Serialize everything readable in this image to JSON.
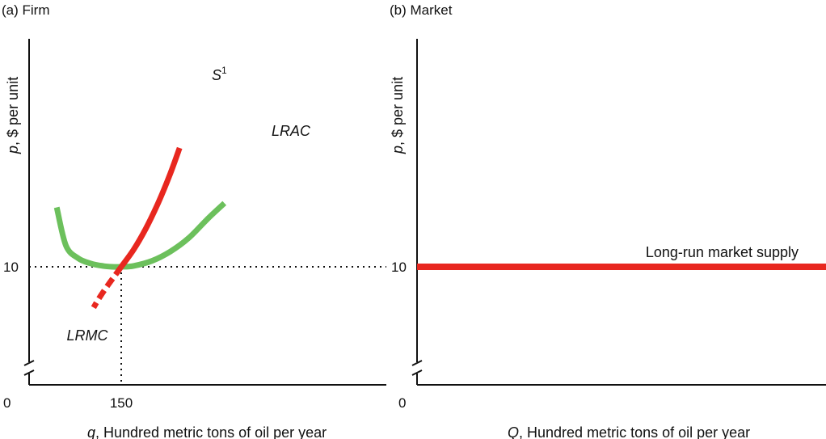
{
  "chart_data": [
    {
      "panel": "firm",
      "type": "line",
      "title": "(a) Firm",
      "ylabel_var": "p",
      "ylabel_rest": ", $ per unit",
      "xlabel_var": "q",
      "xlabel_rest": ", Hundred metric tons of oil per year",
      "origin_label": "0",
      "x_ticks": [
        {
          "value": 150,
          "label": "150"
        }
      ],
      "y_ticks": [
        {
          "value": 10,
          "label": "10"
        }
      ],
      "axis_break_on_y": true,
      "dotted_reference": {
        "x": 150,
        "y": 10
      },
      "series": [
        {
          "name": "LRAC",
          "color": "#6cc05c",
          "points": [
            [
              45,
              17
            ],
            [
              60,
              12.5
            ],
            [
              80,
              11
            ],
            [
              100,
              10.4
            ],
            [
              120,
              10.1
            ],
            [
              135,
              10.0
            ],
            [
              150,
              10.0
            ],
            [
              170,
              10.1
            ],
            [
              200,
              10.7
            ],
            [
              230,
              11.8
            ],
            [
              260,
              13.4
            ],
            [
              290,
              15.6
            ],
            [
              318,
              17.5
            ]
          ]
        },
        {
          "name": "S",
          "name_superscript": "1",
          "color": "#e8271f",
          "points": [
            [
              150,
              10
            ],
            [
              170,
              12
            ],
            [
              190,
              14.5
            ],
            [
              210,
              17.5
            ],
            [
              230,
              21
            ],
            [
              245,
              24
            ]
          ]
        },
        {
          "name": "LRMC",
          "color": "#e8271f",
          "dashed": true,
          "points": [
            [
              150,
              10
            ],
            [
              138,
              8.8
            ],
            [
              126,
              7.6
            ],
            [
              114,
              6.3
            ],
            [
              105,
              5.2
            ]
          ]
        }
      ]
    },
    {
      "panel": "market",
      "type": "line",
      "title": "(b) Market",
      "ylabel_var": "p",
      "ylabel_rest": ", $ per unit",
      "xlabel_var": "Q",
      "xlabel_rest": ", Hundred metric tons of oil per year",
      "origin_label": "0",
      "y_ticks": [
        {
          "value": 10,
          "label": "10"
        }
      ],
      "axis_break_on_y": true,
      "series": [
        {
          "name": "Long-run market supply",
          "color": "#e8271f",
          "points": [
            [
              0,
              10
            ],
            [
              400,
              10
            ]
          ]
        }
      ]
    }
  ]
}
